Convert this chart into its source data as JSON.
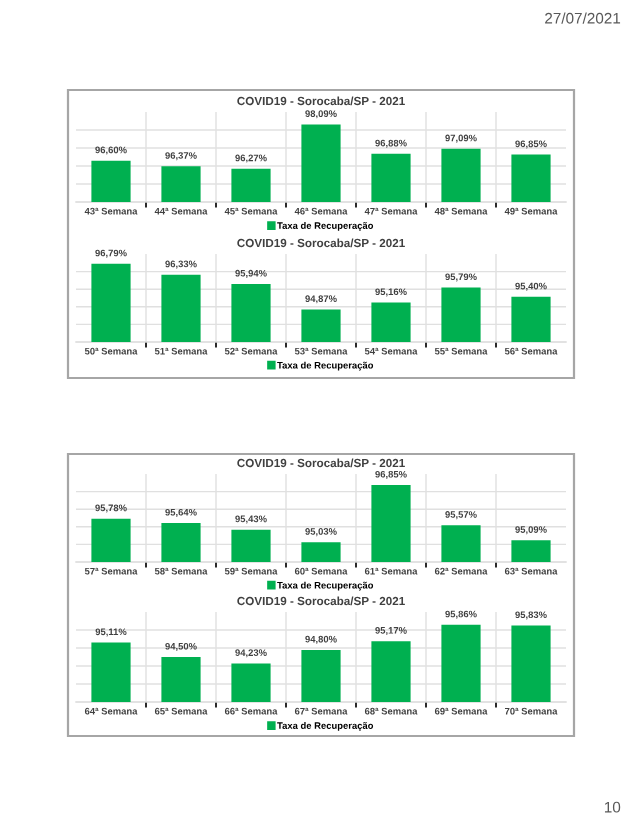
{
  "chart_data": [
    {
      "type": "bar",
      "title": "COVID19 - Sorocaba/SP - 2021",
      "categories": [
        "43ª Semana",
        "44ª Semana",
        "45ª Semana",
        "46ª Semana",
        "47ª Semana",
        "48ª Semana",
        "49ª Semana"
      ],
      "series": [
        {
          "name": "Taxa de Recuperação",
          "color": "#00b050",
          "values": [
            96.6,
            96.37,
            96.27,
            98.09,
            96.88,
            97.09,
            96.85
          ],
          "value_labels": [
            "96,60%",
            "96,37%",
            "96,27%",
            "98,09%",
            "96,88%",
            "97,09%",
            "96,85%"
          ]
        }
      ],
      "ylim": [
        94.9,
        98.6
      ],
      "grid": true,
      "legend": "bottom",
      "tick_labels": "x",
      "annotations": [
        "27/07/2021"
      ]
    },
    {
      "type": "bar",
      "title": "COVID19 - Sorocaba/SP - 2021",
      "categories": [
        "50ª Semana",
        "51ª Semana",
        "52ª Semana",
        "53ª Semana",
        "54ª Semana",
        "55ª Semana",
        "56ª Semana"
      ],
      "series": [
        {
          "name": "Taxa de Recuperação",
          "color": "#00b050",
          "values": [
            96.79,
            96.33,
            95.94,
            94.87,
            95.16,
            95.79,
            95.4
          ],
          "value_labels": [
            "96,79%",
            "96,33%",
            "95,94%",
            "94,87%",
            "95,16%",
            "95,79%",
            "95,40%"
          ]
        }
      ],
      "ylim": [
        93.5,
        97.2
      ],
      "grid": true,
      "legend": "bottom",
      "tick_labels": "x"
    },
    {
      "type": "bar",
      "title": "COVID19 - Sorocaba/SP - 2021",
      "categories": [
        "57ª Semana",
        "58ª Semana",
        "59ª Semana",
        "60ª Semana",
        "61ª Semana",
        "62ª Semana",
        "63ª Semana"
      ],
      "series": [
        {
          "name": "Taxa de Recuperação",
          "color": "#00b050",
          "values": [
            95.78,
            95.64,
            95.43,
            95.03,
            96.85,
            95.57,
            95.09
          ],
          "value_labels": [
            "95,78%",
            "95,64%",
            "95,43%",
            "95,03%",
            "96,85%",
            "95,57%",
            "95,09%"
          ]
        }
      ],
      "ylim": [
        94.4,
        97.2
      ],
      "grid": true,
      "legend": "bottom",
      "tick_labels": "x"
    },
    {
      "type": "bar",
      "title": "COVID19 - Sorocaba/SP - 2021",
      "categories": [
        "64ª Semana",
        "65ª Semana",
        "66ª Semana",
        "67ª Semana",
        "68ª Semana",
        "69ª Semana",
        "70ª Semana"
      ],
      "series": [
        {
          "name": "Taxa de Recuperação",
          "color": "#00b050",
          "values": [
            95.11,
            94.5,
            94.23,
            94.8,
            95.17,
            95.86,
            95.83
          ],
          "value_labels": [
            "95,11%",
            "94,50%",
            "94,23%",
            "94,80%",
            "95,17%",
            "95,86%",
            "95,83%"
          ]
        }
      ],
      "ylim": [
        92.6,
        96.4
      ],
      "grid": true,
      "legend": "bottom",
      "tick_labels": "x",
      "annotations": [
        "10"
      ]
    }
  ]
}
